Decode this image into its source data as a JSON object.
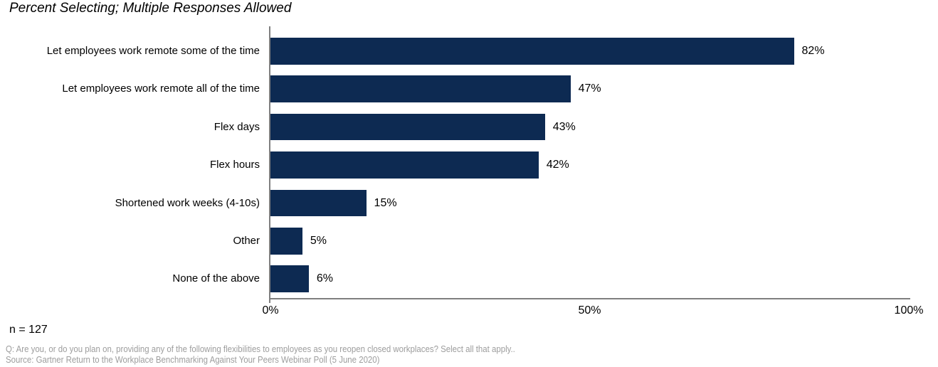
{
  "chart_data": {
    "type": "bar",
    "orientation": "horizontal",
    "title": "Percent Selecting; Multiple Responses Allowed",
    "categories": [
      "Let employees work remote some of the time",
      "Let employees work remote all of the time",
      "Flex days",
      "Flex hours",
      "Shortened work weeks (4-10s)",
      "Other",
      "None of the above"
    ],
    "values": [
      82,
      47,
      43,
      42,
      15,
      5,
      6
    ],
    "value_labels": [
      "82%",
      "47%",
      "43%",
      "42%",
      "15%",
      "5%",
      "6%"
    ],
    "xlabel": "",
    "ylabel": "",
    "xlim": [
      0,
      100
    ],
    "x_ticks": [
      {
        "value": 0,
        "label": "0%"
      },
      {
        "value": 50,
        "label": "50%"
      },
      {
        "value": 100,
        "label": "100%"
      }
    ],
    "grid": false,
    "legend": false,
    "bar_color": "#0d2a52",
    "axis_color": "#7f7f7f",
    "label_color": "#000000"
  },
  "footer": {
    "n_label": "n = 127",
    "question": "Q: Are you, or do you plan on, providing any of the following flexibilities to employees as you reopen closed workplaces? Select all that apply..",
    "source": "Source: Gartner Return to the Workplace Benchmarking Against Your Peers Webinar Poll (5 June 2020)",
    "note_color": "#9d9d9d"
  }
}
